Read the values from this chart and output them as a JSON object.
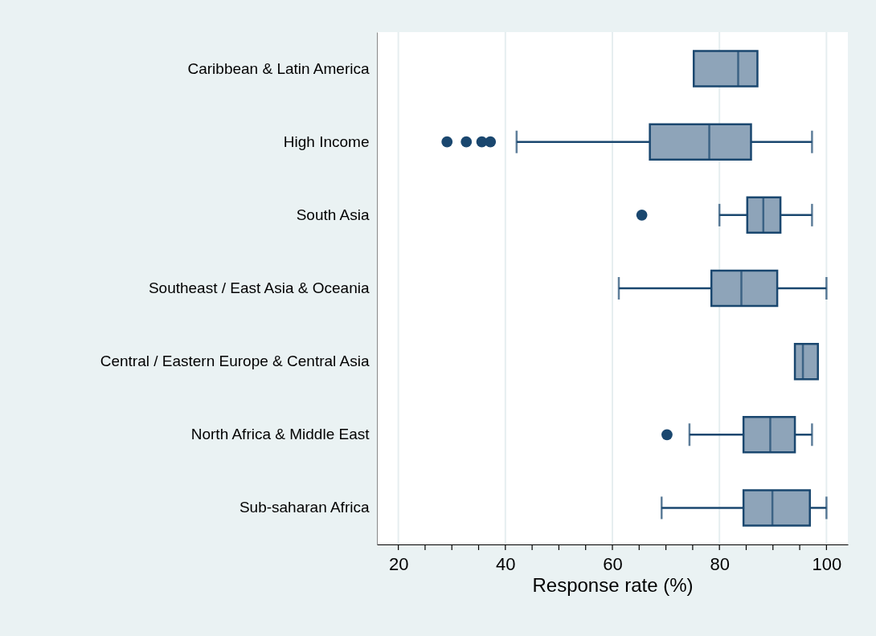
{
  "chart_data": {
    "type": "box",
    "orientation": "horizontal",
    "xlabel": "Response rate (%)",
    "categories": [
      "Caribbean & Latin America",
      "High Income",
      "South Asia",
      "Southeast / East Asia & Oceania",
      "Central / Eastern Europe & Central Asia",
      "North Africa & Middle East",
      "Sub-saharan Africa"
    ],
    "series": [
      {
        "color": "#8ea4b9",
        "boxes": [
          {
            "low": 75.2,
            "q1": 75.2,
            "median": 83.5,
            "q3": 87.1,
            "high": 87.1
          },
          {
            "low": 42.1,
            "q1": 67.0,
            "median": 78.1,
            "q3": 85.9,
            "high": 97.3,
            "outliers": [
              29.1,
              32.7,
              35.6,
              37.2
            ]
          },
          {
            "low": 80.0,
            "q1": 85.2,
            "median": 88.2,
            "q3": 91.4,
            "high": 97.3,
            "outliers": [
              65.5
            ]
          },
          {
            "low": 61.2,
            "q1": 78.5,
            "median": 84.1,
            "q3": 90.8,
            "high": 100
          },
          {
            "low": 94.1,
            "q1": 94.1,
            "median": 95.6,
            "q3": 98.4,
            "high": 98.4
          },
          {
            "low": 74.4,
            "q1": 84.5,
            "median": 89.5,
            "q3": 94.1,
            "high": 97.3,
            "outliers": [
              70.2
            ]
          },
          {
            "low": 69.2,
            "q1": 84.5,
            "median": 89.9,
            "q3": 96.9,
            "high": 100
          }
        ]
      }
    ],
    "xlim": [
      16,
      104
    ],
    "xticks": [
      20,
      {
        "value": 25,
        "label": null
      },
      {
        "value": 30,
        "label": null
      },
      {
        "value": 35,
        "label": null
      },
      40,
      {
        "value": 45,
        "label": null
      },
      {
        "value": 50,
        "label": null
      },
      {
        "value": 55,
        "label": null
      },
      60,
      {
        "value": 65,
        "label": null
      },
      {
        "value": 70,
        "label": null
      },
      {
        "value": 75,
        "label": null
      },
      80,
      {
        "value": 85,
        "label": null
      },
      {
        "value": 90,
        "label": null
      },
      {
        "value": 95,
        "label": null
      },
      100
    ],
    "grid": "x",
    "legend": false
  }
}
